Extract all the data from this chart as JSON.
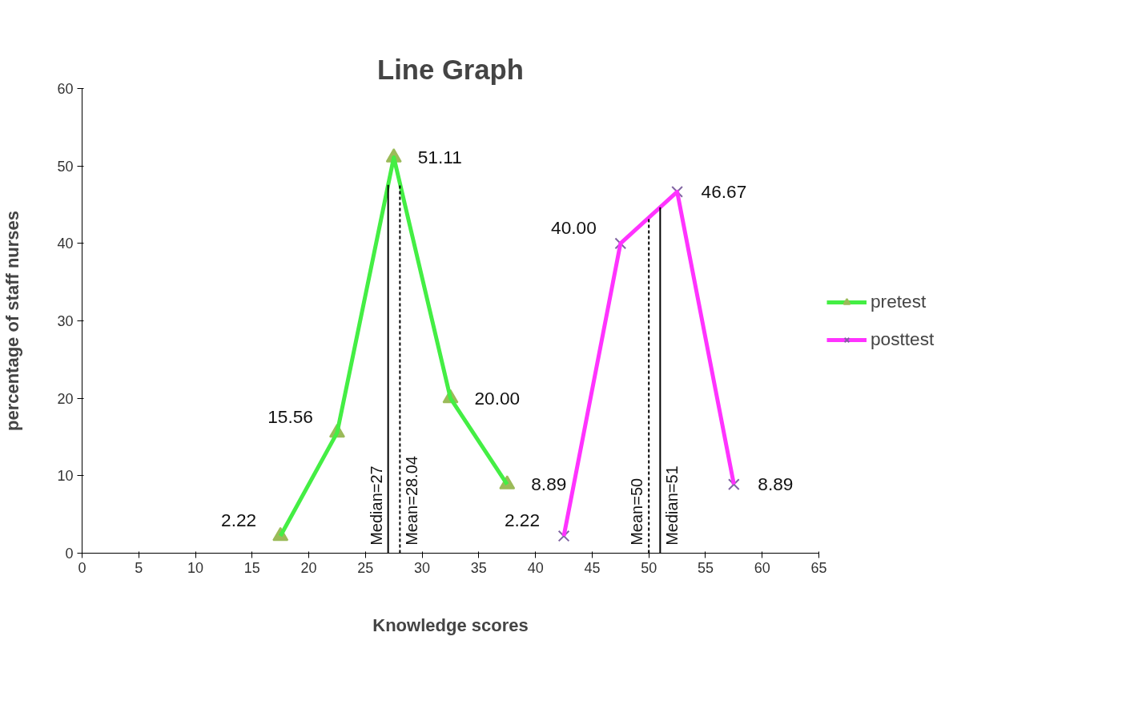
{
  "chart_data": {
    "type": "line",
    "title": "Line Graph",
    "xlabel": "Knowledge scores",
    "ylabel": "percentage of staff nurses",
    "xlim": [
      0,
      65
    ],
    "xticks": [
      0,
      5,
      10,
      15,
      20,
      25,
      30,
      35,
      40,
      45,
      50,
      55,
      60,
      65
    ],
    "ylim": [
      0,
      60
    ],
    "yticks": [
      0,
      10,
      20,
      30,
      40,
      50,
      60
    ],
    "grid": false,
    "legend": "right",
    "series": [
      {
        "name": "pretest",
        "color": "#44ee44",
        "marker": "triangle",
        "colors": [
          "#9bbb59",
          "#9bbb59",
          "#9bbb59",
          "#9bbb59",
          "#9bbb59"
        ],
        "x": [
          17.5,
          22.5,
          27.5,
          32.5,
          37.5
        ],
        "values": [
          2.22,
          15.56,
          51.11,
          20.0,
          8.89
        ],
        "value_labels": [
          "2.22",
          "15.56",
          "51.11",
          "20.00",
          "8.89"
        ]
      },
      {
        "name": "posttest",
        "color": "#ff33ff",
        "marker": "cross",
        "colors": [
          "#8064a2",
          "#8064a2",
          "#8064a2",
          "#8064a2"
        ],
        "x": [
          42.5,
          47.5,
          52.5,
          57.5
        ],
        "values": [
          2.22,
          40.0,
          46.67,
          8.89
        ],
        "value_labels": [
          "2.22",
          "40.00",
          "46.67",
          "8.89"
        ]
      }
    ],
    "ref_lines": [
      {
        "axis": "x",
        "value": 27,
        "label": "Median=27",
        "line_style": "solid",
        "color": "#000000"
      },
      {
        "axis": "x",
        "value": 28.04,
        "label": "Mean=28.04",
        "line_style": "dashed",
        "color": "#000000"
      },
      {
        "axis": "x",
        "value": 50,
        "label": "Mean=50",
        "line_style": "dashed",
        "color": "#000000"
      },
      {
        "axis": "x",
        "value": 51,
        "label": "Median=51",
        "line_style": "solid",
        "color": "#000000"
      }
    ]
  }
}
